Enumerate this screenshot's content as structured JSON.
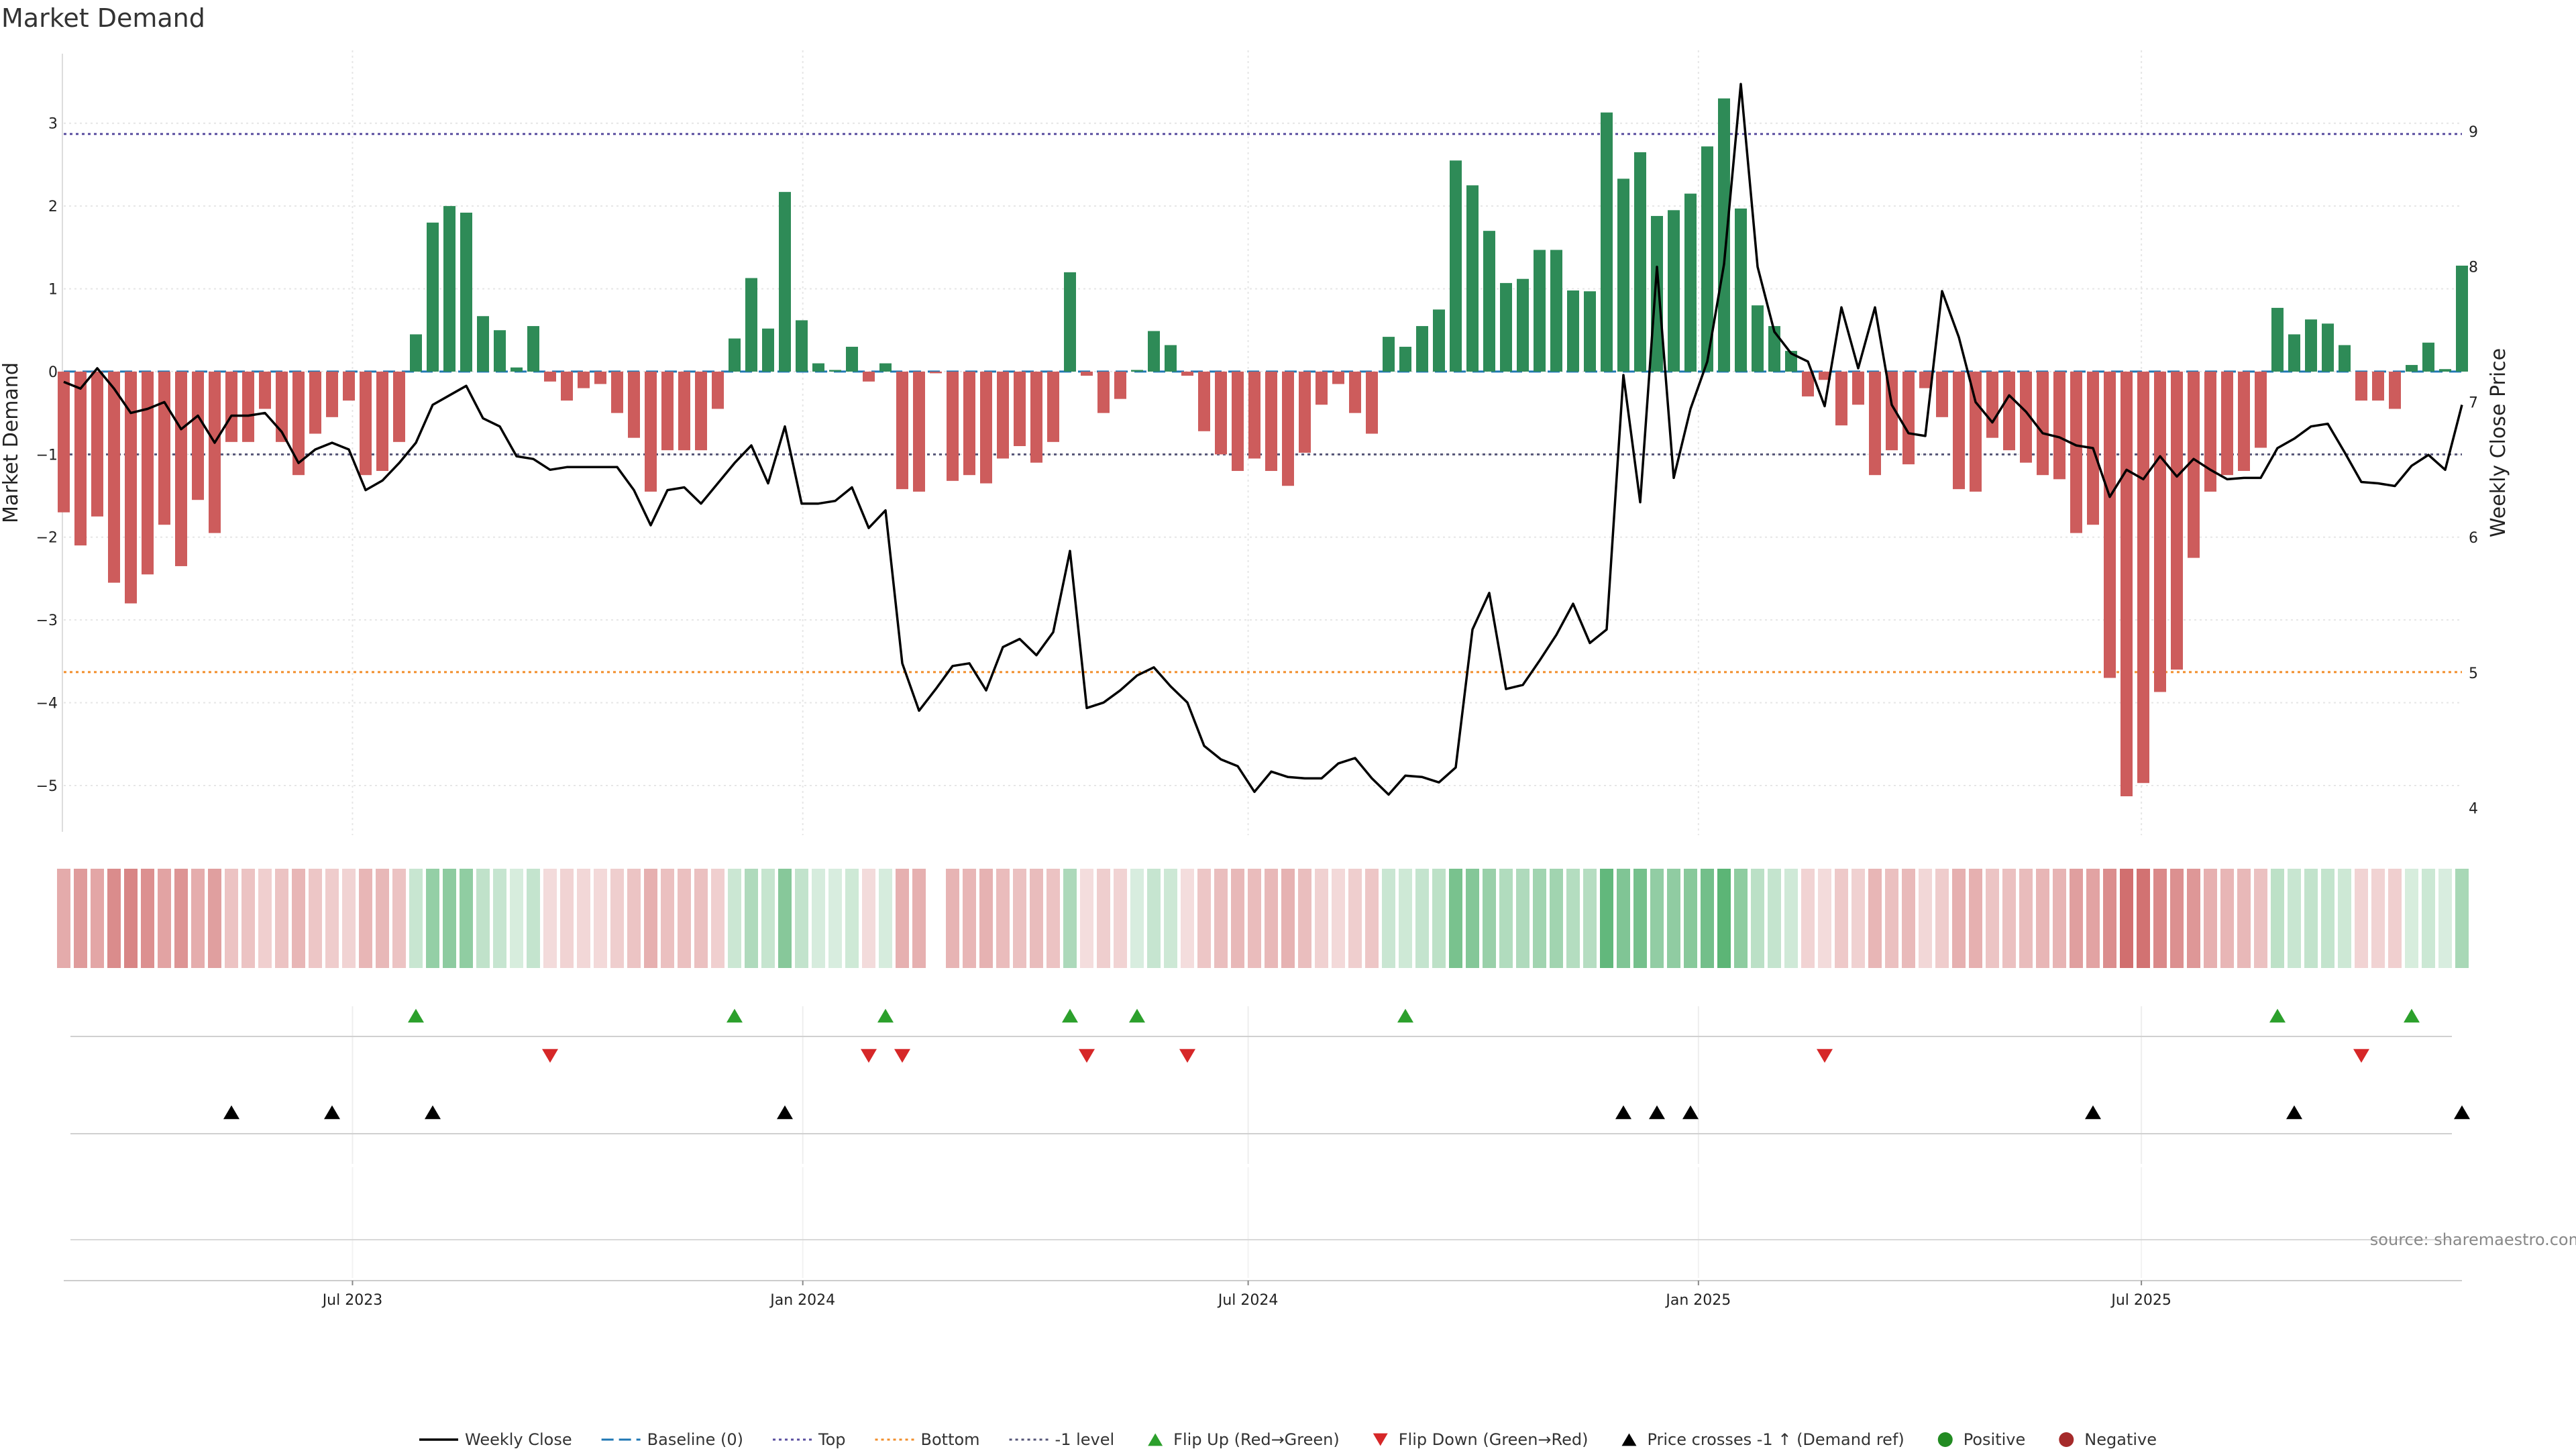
{
  "title": "Market Demand",
  "source": "source: sharemaestro.com",
  "colors": {
    "positive": "#2e8b57",
    "negative": "#cd5c5c",
    "close": "#000000",
    "baseline": "#1f77b4",
    "top": "#5a4fa0",
    "bottom": "#f28e2b",
    "minus_one": "#555577",
    "flip_up": "#2ca02c",
    "flip_down": "#d62728",
    "cross": "#000000",
    "dot_positive": "#228b22",
    "dot_negative": "#a52a2a"
  },
  "chart_data": {
    "type": "bar",
    "title": "Market Demand",
    "ylabel": "Market Demand",
    "y2label": "Weekly Close Price",
    "ylim": [
      -5.6,
      3.8
    ],
    "y2lim": [
      3.8,
      9.55
    ],
    "yticks": [
      3,
      2,
      1,
      0,
      -1,
      -2,
      -3,
      -4,
      -5
    ],
    "yticklabels": [
      "3",
      "2",
      "1",
      "0",
      "−1",
      "−2",
      "−3",
      "−4",
      "−5"
    ],
    "y2ticks": [
      9,
      8,
      7,
      6,
      5,
      4
    ],
    "y2ticklabels": [
      "9",
      "8",
      "7",
      "6",
      "5",
      "4"
    ],
    "x_start": "2023-03-05",
    "x_end": "2025-11-09",
    "week_count": 144,
    "xticks": [
      "2023-07-01",
      "2024-01-01",
      "2024-07-01",
      "2025-01-01",
      "2025-07-01"
    ],
    "xticklabels": [
      "Jul 2023",
      "Jan 2024",
      "Jul 2024",
      "Jan 2025",
      "Jul 2025"
    ],
    "levels": {
      "top": 2.87,
      "bottom": -3.63,
      "minus_one": -1.0,
      "baseline": 0
    },
    "bars": [
      -1.7,
      -2.1,
      -1.75,
      -2.55,
      -2.8,
      -2.45,
      -1.85,
      -2.35,
      -1.55,
      -1.95,
      -0.85,
      -0.85,
      -0.45,
      -0.85,
      -1.25,
      -0.75,
      -0.55,
      -0.35,
      -1.25,
      -1.2,
      -0.85,
      0.45,
      1.8,
      2.0,
      1.92,
      0.67,
      0.5,
      0.05,
      0.55,
      -0.12,
      -0.35,
      -0.2,
      -0.15,
      -0.5,
      -0.8,
      -1.45,
      -0.95,
      -0.95,
      -0.95,
      -0.45,
      0.4,
      1.13,
      0.52,
      2.17,
      0.62,
      0.1,
      0.02,
      0.3,
      -0.12,
      0.1,
      -1.42,
      -1.45,
      -0.02,
      -1.32,
      -1.25,
      -1.35,
      -1.05,
      -0.9,
      -1.1,
      -0.85,
      1.2,
      -0.05,
      -0.5,
      -0.33,
      0.02,
      0.49,
      0.32,
      -0.05,
      -0.72,
      -1.0,
      -1.2,
      -1.05,
      -1.2,
      -1.38,
      -0.98,
      -0.4,
      -0.15,
      -0.5,
      -0.75,
      0.42,
      0.3,
      0.55,
      0.75,
      2.55,
      2.25,
      1.7,
      1.07,
      1.12,
      1.47,
      1.47,
      0.98,
      0.97,
      3.13,
      2.33,
      2.65,
      1.88,
      1.95,
      2.15,
      2.72,
      3.3,
      1.97,
      0.8,
      0.55,
      0.25,
      -0.3,
      -0.1,
      -0.65,
      -0.4,
      -1.25,
      -0.95,
      -1.12,
      -0.2,
      -0.55,
      -1.42,
      -1.45,
      -0.8,
      -0.95,
      -1.1,
      -1.25,
      -1.3,
      -1.95,
      -1.85,
      -3.7,
      -5.13,
      -4.97,
      -3.87,
      -3.6,
      -2.25,
      -1.45,
      -1.25,
      -1.2,
      -0.92,
      0.77,
      0.45,
      0.63,
      0.58,
      0.32,
      -0.35,
      -0.35,
      -0.45,
      0.08,
      0.35,
      0.03,
      1.28
    ],
    "close": [
      7.15,
      7.1,
      7.25,
      7.1,
      6.92,
      6.95,
      7.0,
      6.8,
      6.9,
      6.7,
      6.9,
      6.9,
      6.92,
      6.78,
      6.55,
      6.65,
      6.7,
      6.65,
      6.35,
      6.42,
      6.55,
      6.7,
      6.98,
      7.05,
      7.12,
      6.88,
      6.82,
      6.6,
      6.58,
      6.5,
      6.52,
      6.52,
      6.52,
      6.52,
      6.35,
      6.09,
      6.35,
      6.37,
      6.25,
      6.4,
      6.55,
      6.68,
      6.4,
      6.82,
      6.25,
      6.25,
      6.27,
      6.37,
      6.07,
      6.2,
      5.07,
      4.72,
      4.88,
      5.05,
      5.07,
      4.87,
      5.19,
      5.25,
      5.13,
      5.3,
      5.9,
      4.74,
      4.78,
      4.87,
      4.98,
      5.04,
      4.9,
      4.78,
      4.46,
      4.36,
      4.31,
      4.12,
      4.27,
      4.23,
      4.22,
      4.22,
      4.33,
      4.37,
      4.22,
      4.1,
      4.24,
      4.23,
      4.19,
      4.3,
      5.32,
      5.59,
      4.88,
      4.91,
      5.09,
      5.28,
      5.51,
      5.22,
      5.32,
      7.2,
      6.26,
      8.0,
      6.44,
      6.95,
      7.3,
      8.02,
      9.35,
      8.0,
      7.52,
      7.36,
      7.3,
      6.97,
      7.7,
      7.25,
      7.7,
      6.98,
      6.77,
      6.75,
      7.82,
      7.48,
      7.0,
      6.85,
      7.05,
      6.93,
      6.77,
      6.74,
      6.68,
      6.66,
      6.3,
      6.5,
      6.43,
      6.6,
      6.45,
      6.58,
      6.5,
      6.43,
      6.44,
      6.44,
      6.66,
      6.73,
      6.82,
      6.84,
      6.63,
      6.41,
      6.4,
      6.38,
      6.53,
      6.61,
      6.5,
      6.98
    ],
    "heat": [
      -0.46,
      -0.6,
      -0.5,
      -0.73,
      -0.8,
      -0.7,
      -0.53,
      -0.67,
      -0.44,
      -0.56,
      -0.24,
      -0.24,
      -0.13,
      -0.24,
      -0.36,
      -0.21,
      -0.16,
      -0.1,
      -0.36,
      -0.34,
      -0.24,
      0.14,
      0.55,
      0.61,
      0.58,
      0.2,
      0.15,
      0.02,
      0.17,
      -0.03,
      -0.1,
      -0.06,
      -0.04,
      -0.14,
      -0.23,
      -0.41,
      -0.27,
      -0.27,
      -0.27,
      -0.13,
      0.12,
      0.34,
      0.16,
      0.66,
      0.19,
      0.03,
      0.01,
      0.09,
      -0.03,
      0.03,
      -0.41,
      -0.41,
      null,
      -0.38,
      -0.36,
      -0.39,
      -0.3,
      -0.26,
      -0.31,
      -0.24,
      0.36,
      -0.01,
      -0.14,
      -0.09,
      0.01,
      0.15,
      0.1,
      -0.01,
      -0.21,
      -0.29,
      -0.34,
      -0.3,
      -0.34,
      -0.39,
      -0.28,
      -0.11,
      -0.04,
      -0.14,
      -0.21,
      0.13,
      0.09,
      0.17,
      0.23,
      0.77,
      0.68,
      0.52,
      0.32,
      0.34,
      0.45,
      0.45,
      0.3,
      0.29,
      0.95,
      0.71,
      0.8,
      0.57,
      0.59,
      0.65,
      0.82,
      1.0,
      0.6,
      0.24,
      0.17,
      0.08,
      -0.09,
      -0.03,
      -0.19,
      -0.11,
      -0.36,
      -0.27,
      -0.32,
      -0.06,
      -0.16,
      -0.41,
      -0.41,
      -0.23,
      -0.27,
      -0.31,
      -0.36,
      -0.37,
      -0.56,
      -0.53,
      -0.72,
      -1.0,
      -0.97,
      -0.76,
      -0.7,
      -0.64,
      -0.41,
      -0.36,
      -0.34,
      -0.26,
      0.23,
      0.14,
      0.19,
      0.18,
      0.1,
      -0.1,
      -0.1,
      -0.13,
      0.02,
      0.11,
      0.01,
      0.39
    ],
    "flip_up_weeks": [
      21,
      40,
      49,
      60,
      64,
      80,
      132,
      140
    ],
    "flip_down_weeks": [
      29,
      48,
      50,
      61,
      67,
      105,
      137
    ],
    "cross_weeks": [
      10,
      16,
      22,
      43,
      93,
      95,
      97,
      121,
      133,
      143
    ],
    "legend": [
      "Weekly Close",
      "Baseline (0)",
      "Top",
      "Bottom",
      "-1 level",
      "Flip Up (Red→Green)",
      "Flip Down (Green→Red)",
      "Price crosses -1 ↑ (Demand ref)",
      "Positive",
      "Negative"
    ]
  }
}
